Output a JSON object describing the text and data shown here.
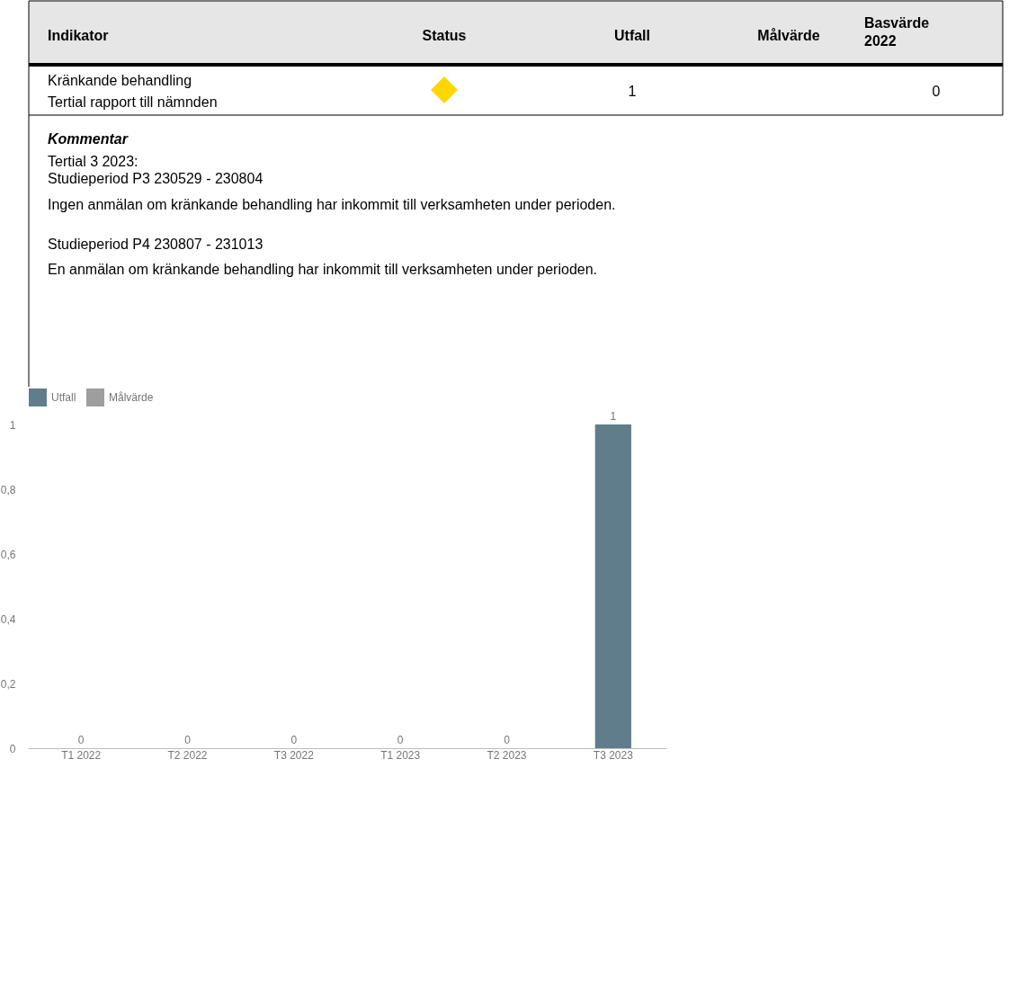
{
  "chart_data": [
    {
      "type": "other",
      "annotations": [
        "Indikator",
        "Status",
        "Utfall",
        "Målvärde",
        "Basvärde 2022",
        "Kränkande behandling",
        "Tertial rapport till nämnden",
        "1",
        "0",
        "Kommentar",
        "Tertial 3 2023:",
        "Studieperiod P3 230529 - 230804",
        "Ingen anmälan om kränkande behandling har inkommit till verksamheten under perioden.",
        "Studieperiod P4 230807 - 231013",
        "En anmälan om kränkande behandling har inkommit till verksamheten under perioden."
      ]
    },
    {
      "type": "bar",
      "categories": [
        "T1 2022",
        "T2 2022",
        "T3 2022",
        "T1 2023",
        "T2 2023",
        "T3 2023"
      ],
      "series": [
        {
          "name": "Utfall",
          "color": "#607d8b",
          "values": [
            0,
            0,
            0,
            0,
            0,
            1
          ]
        },
        {
          "name": "Målvärde",
          "color": "#9e9e9e",
          "values": [
            null,
            null,
            null,
            null,
            null,
            null
          ]
        }
      ],
      "ylim": [
        0,
        1
      ],
      "yticks": [
        0,
        {
          "value": 0.2,
          "label": "0,2"
        },
        {
          "value": 0.4,
          "label": "0,4"
        },
        {
          "value": 0.6,
          "label": "0,6"
        },
        {
          "value": 0.8,
          "label": "0,8"
        },
        1
      ],
      "data_labels": true,
      "legend": "top left",
      "grid": false
    }
  ]
}
